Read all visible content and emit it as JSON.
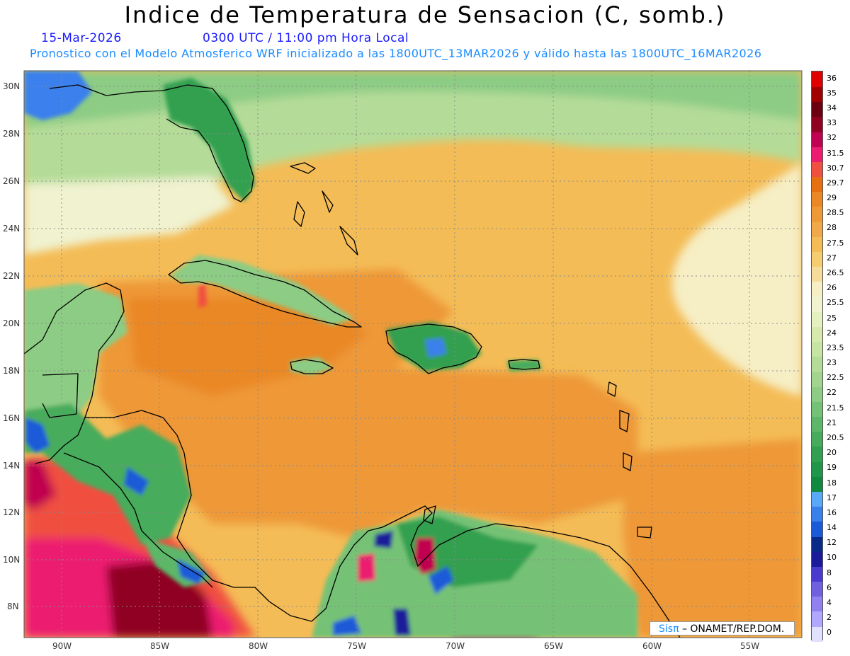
{
  "title": "Indice de Temperatura de Sensacion (C, somb.)",
  "date": "15-Mar-2026",
  "time": "0300 UTC / 11:00 pm Hora Local",
  "model_info": "Pronostico con el Modelo Atmosferico WRF inicializado a las 1800UTC_13MAR2026 y válido hasta las  1800UTC_16MAR2026",
  "credit": {
    "sis": "Sisπ",
    "rest": "– ONAMET/REP.DOM."
  },
  "lat_labels": [
    "30N",
    "28N",
    "26N",
    "24N",
    "22N",
    "20N",
    "18N",
    "16N",
    "14N",
    "12N",
    "10N",
    "8N"
  ],
  "lon_labels": [
    "90W",
    "85W",
    "80W",
    "75W",
    "70W",
    "65W",
    "60W",
    "55W"
  ],
  "legend": [
    {
      "label": "0",
      "color": "#e0e0ff"
    },
    {
      "label": "2",
      "color": "#b0a8ff"
    },
    {
      "label": "4",
      "color": "#9080f0"
    },
    {
      "label": "6",
      "color": "#7060e0"
    },
    {
      "label": "8",
      "color": "#4a3ad0"
    },
    {
      "label": "10",
      "color": "#1a1a9a"
    },
    {
      "label": "12",
      "color": "#0a2a8a"
    },
    {
      "label": "14",
      "color": "#1a5ad8"
    },
    {
      "label": "16",
      "color": "#3a80ec"
    },
    {
      "label": "17",
      "color": "#5aa8f8"
    },
    {
      "label": "18",
      "color": "#108a40"
    },
    {
      "label": "19",
      "color": "#20964a"
    },
    {
      "label": "20",
      "color": "#30a050"
    },
    {
      "label": "20.5",
      "color": "#46ac5c"
    },
    {
      "label": "21",
      "color": "#5cb868"
    },
    {
      "label": "21.5",
      "color": "#74c276"
    },
    {
      "label": "22",
      "color": "#8ccc84"
    },
    {
      "label": "22.5",
      "color": "#a2d490"
    },
    {
      "label": "23",
      "color": "#b4dc98"
    },
    {
      "label": "23.5",
      "color": "#c6e4a2"
    },
    {
      "label": "24",
      "color": "#d6eaae"
    },
    {
      "label": "25",
      "color": "#e4f0c0"
    },
    {
      "label": "25.5",
      "color": "#f0f2d0"
    },
    {
      "label": "26",
      "color": "#f6eec4"
    },
    {
      "label": "26.5",
      "color": "#f6dc9a"
    },
    {
      "label": "27",
      "color": "#f6cc70"
    },
    {
      "label": "27.5",
      "color": "#f4bc56"
    },
    {
      "label": "28",
      "color": "#f0a848"
    },
    {
      "label": "28.5",
      "color": "#ee9838"
    },
    {
      "label": "29",
      "color": "#ea8826"
    },
    {
      "label": "29.7",
      "color": "#e67010"
    },
    {
      "label": "30.7",
      "color": "#f05040"
    },
    {
      "label": "31.5",
      "color": "#ec1c70"
    },
    {
      "label": "32",
      "color": "#c00050"
    },
    {
      "label": "33",
      "color": "#900020"
    },
    {
      "label": "34",
      "color": "#6a0010"
    },
    {
      "label": "35",
      "color": "#a00000"
    },
    {
      "label": "36",
      "color": "#e00000"
    }
  ],
  "palette": {
    "ocean_warm": "#ee9838",
    "ocean_mid": "#f4bc56",
    "ocean_pale": "#f6dc9a",
    "north_green": "#b4dc98",
    "land_green": "#30a050",
    "land_pale": "#d6eaae",
    "hot_red": "#ec1c70",
    "deep_red": "#900020",
    "blue": "#1a5ad8"
  }
}
